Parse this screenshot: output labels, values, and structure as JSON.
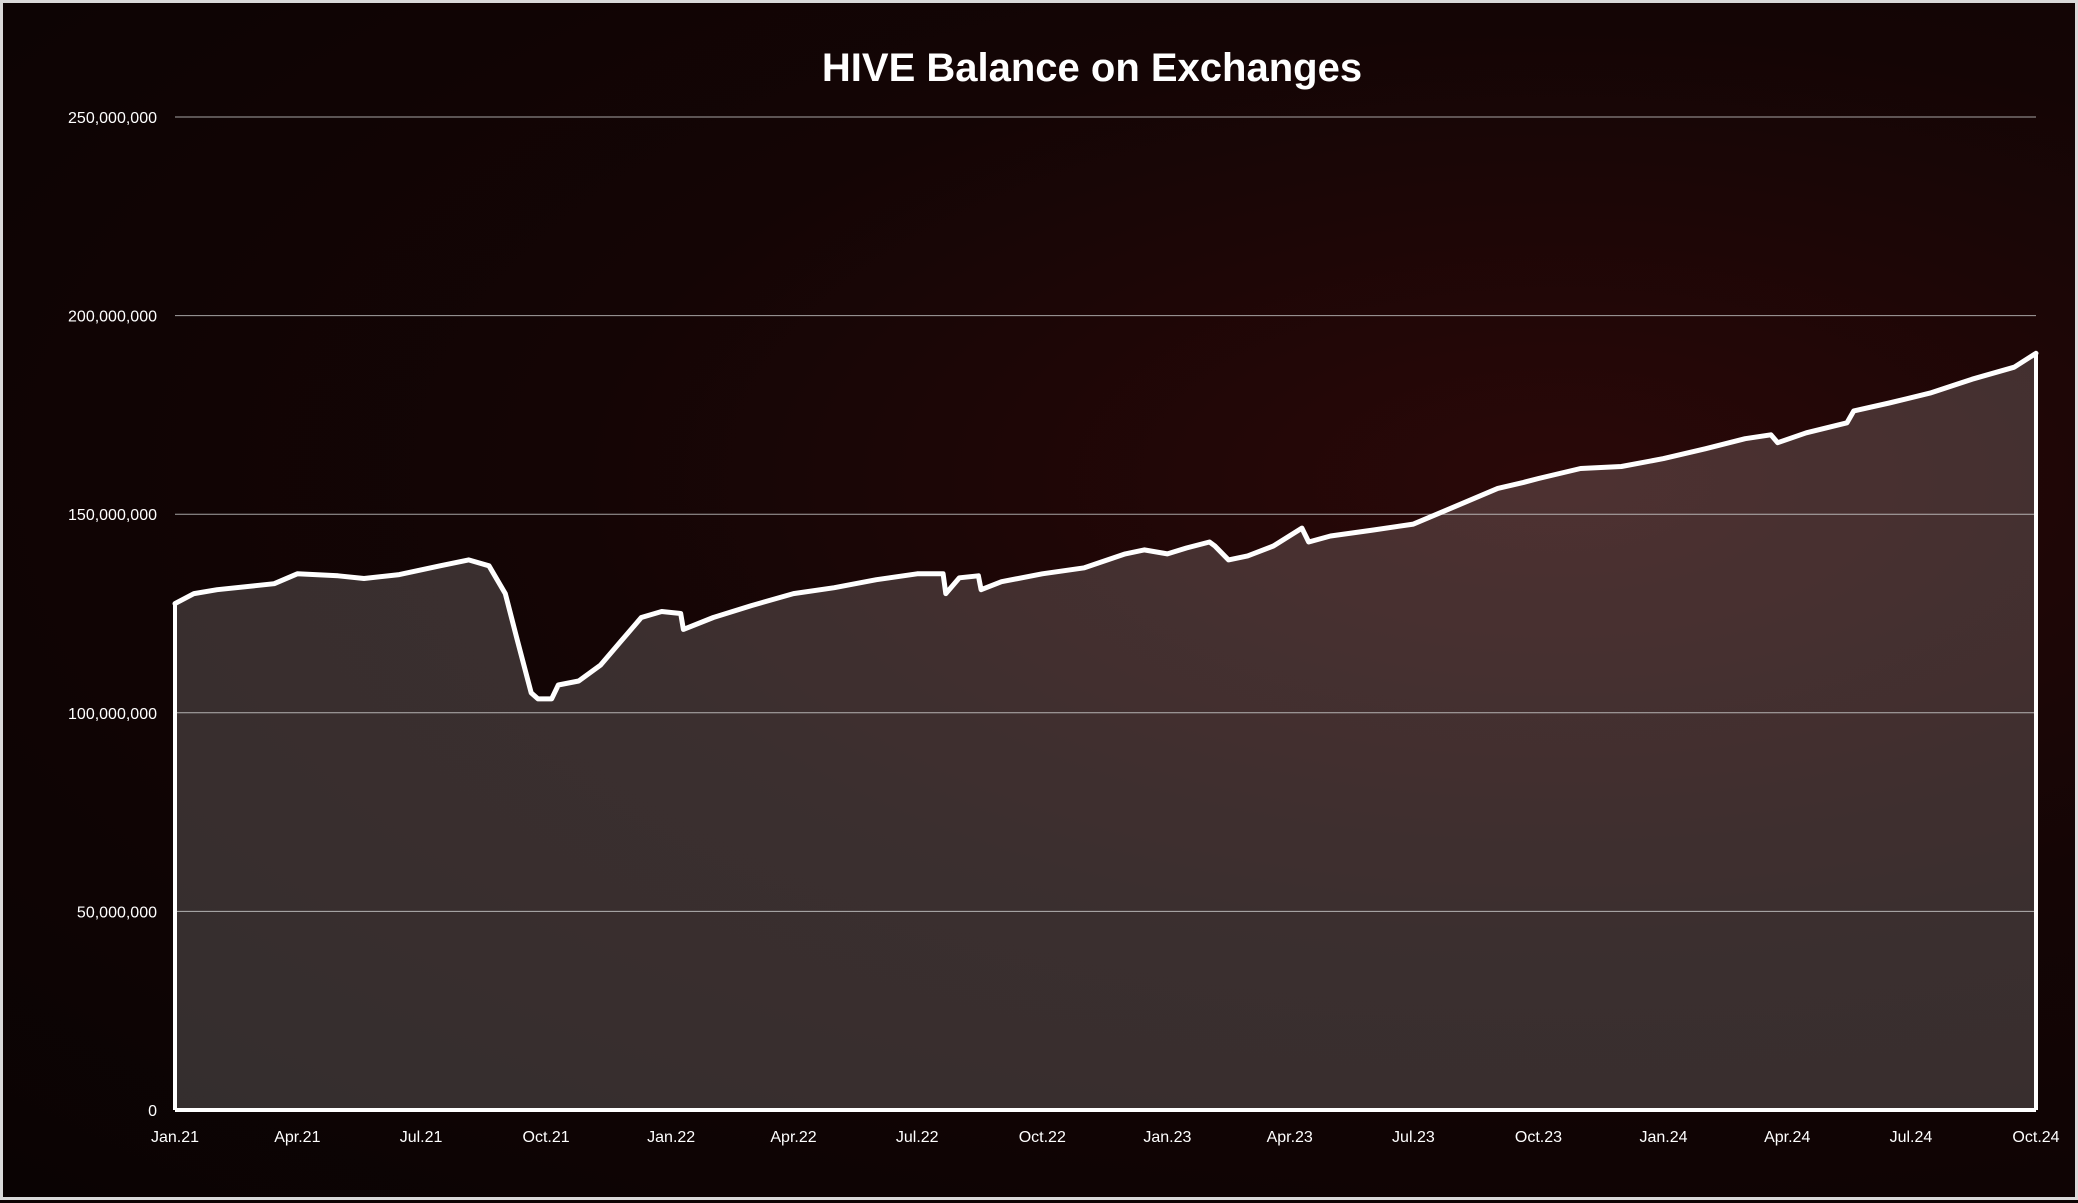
{
  "chart_data": {
    "type": "area",
    "title": "HIVE Balance on Exchanges",
    "xlabel": "",
    "ylabel": "",
    "ylim": [
      0,
      250000000
    ],
    "yticks": [
      0,
      50000000,
      100000000,
      150000000,
      200000000,
      250000000
    ],
    "ytick_labels": [
      "0",
      "50,000,000",
      "100,000,000",
      "150,000,000",
      "200,000,000",
      "250,000,000"
    ],
    "xlim": [
      "2021-01-01",
      "2024-10-01"
    ],
    "xticks": [
      "2021-01-01",
      "2021-04-01",
      "2021-07-01",
      "2021-10-01",
      "2022-01-01",
      "2022-04-01",
      "2022-07-01",
      "2022-10-01",
      "2023-01-01",
      "2023-04-01",
      "2023-07-01",
      "2023-10-01",
      "2024-01-01",
      "2024-04-01",
      "2024-07-01",
      "2024-10-01"
    ],
    "xtick_labels": [
      "Jan.21",
      "Apr.21",
      "Jul.21",
      "Oct.21",
      "Jan.22",
      "Apr.22",
      "Jul.22",
      "Oct.22",
      "Jan.23",
      "Apr.23",
      "Jul.23",
      "Oct.23",
      "Jan.24",
      "Apr.24",
      "Jul.24",
      "Oct.24"
    ],
    "grid": true,
    "legend": "none",
    "colors": {
      "line": "#ffffff",
      "fill": "#ffffff",
      "grid": "#bfbfbf",
      "text": "#ffffff"
    },
    "series": [
      {
        "x": [
          "2021-01-01",
          "2021-01-15",
          "2021-02-01",
          "2021-03-01",
          "2021-03-15",
          "2021-04-01",
          "2021-05-01",
          "2021-05-20",
          "2021-06-15",
          "2021-07-15",
          "2021-08-05",
          "2021-08-20",
          "2021-09-01",
          "2021-09-10",
          "2021-09-20",
          "2021-09-25",
          "2021-10-05",
          "2021-10-10",
          "2021-10-25",
          "2021-11-10",
          "2021-11-25",
          "2021-12-10",
          "2021-12-25",
          "2022-01-08",
          "2022-01-10",
          "2022-02-01",
          "2022-03-01",
          "2022-04-01",
          "2022-05-01",
          "2022-06-01",
          "2022-07-01",
          "2022-07-20",
          "2022-07-22",
          "2022-08-01",
          "2022-08-15",
          "2022-08-17",
          "2022-09-01",
          "2022-10-01",
          "2022-11-01",
          "2022-12-01",
          "2022-12-15",
          "2023-01-01",
          "2023-01-15",
          "2023-02-01",
          "2023-02-05",
          "2023-02-15",
          "2023-03-01",
          "2023-03-20",
          "2023-04-10",
          "2023-04-15",
          "2023-05-01",
          "2023-06-01",
          "2023-07-01",
          "2023-08-01",
          "2023-09-01",
          "2023-09-20",
          "2023-10-01",
          "2023-11-01",
          "2023-12-01",
          "2024-01-01",
          "2024-02-01",
          "2024-03-01",
          "2024-03-20",
          "2024-03-25",
          "2024-04-15",
          "2024-05-15",
          "2024-05-20",
          "2024-06-15",
          "2024-07-15",
          "2024-08-15",
          "2024-09-15",
          "2024-10-01"
        ],
        "values": [
          127500000,
          130000000,
          131000000,
          132000000,
          132500000,
          135000000,
          134500000,
          133800000,
          134800000,
          137000000,
          138500000,
          137000000,
          130000000,
          118000000,
          105000000,
          103500000,
          103500000,
          107000000,
          108000000,
          112000000,
          118000000,
          124000000,
          125500000,
          125000000,
          121000000,
          124000000,
          127000000,
          130000000,
          131500000,
          133500000,
          135000000,
          135000000,
          130000000,
          134000000,
          134500000,
          131000000,
          133000000,
          135000000,
          136500000,
          140000000,
          141000000,
          140000000,
          141500000,
          143000000,
          142000000,
          138500000,
          139500000,
          142000000,
          146500000,
          143000000,
          144500000,
          146000000,
          147500000,
          152000000,
          156500000,
          158000000,
          159000000,
          161500000,
          162000000,
          164000000,
          166500000,
          169000000,
          170000000,
          168000000,
          170500000,
          173000000,
          176000000,
          178000000,
          180500000,
          184000000,
          187000000,
          190500000
        ]
      }
    ]
  }
}
